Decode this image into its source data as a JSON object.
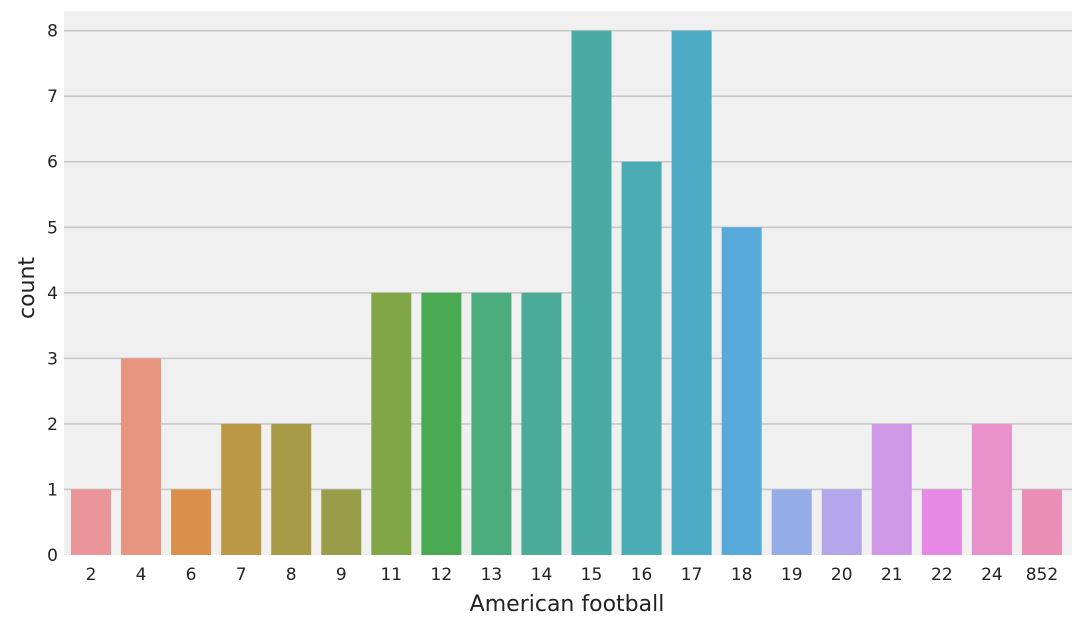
{
  "chart_data": {
    "type": "bar",
    "title": "",
    "xlabel": "American football",
    "ylabel": "count",
    "categories": [
      "2",
      "4",
      "6",
      "7",
      "8",
      "9",
      "11",
      "12",
      "13",
      "14",
      "15",
      "16",
      "17",
      "18",
      "19",
      "20",
      "21",
      "22",
      "24",
      "852"
    ],
    "values": [
      1,
      3,
      1,
      2,
      2,
      1,
      4,
      4,
      4,
      4,
      8,
      6,
      8,
      5,
      1,
      1,
      2,
      1,
      2,
      1
    ],
    "colors": [
      "#e99599",
      "#e6957f",
      "#d8904a",
      "#bb9845",
      "#a89a46",
      "#999d49",
      "#80a648",
      "#4aaa52",
      "#4bac7c",
      "#4bab98",
      "#4aaaa6",
      "#4cacb5",
      "#4eabc5",
      "#57a9d9",
      "#94ade6",
      "#b3a6ea",
      "#d099e8",
      "#e688e4",
      "#e891cb",
      "#e98fb6"
    ],
    "ylim": [
      0,
      8.3
    ],
    "yticks": [
      0,
      1,
      2,
      3,
      4,
      5,
      6,
      7,
      8
    ],
    "grid": "horizontal",
    "background": "#f0f0f0",
    "gridColor": "#c8c8c8"
  }
}
